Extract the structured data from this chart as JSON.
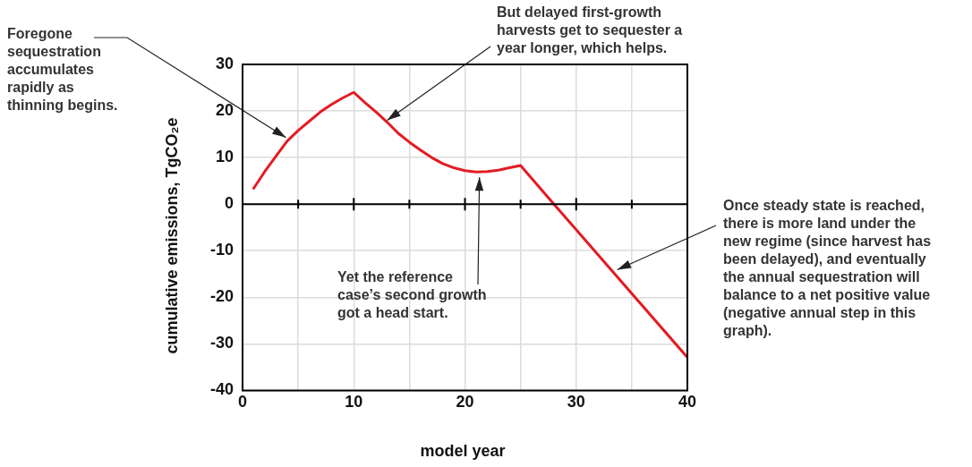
{
  "chart_data": {
    "type": "line",
    "xlabel": "model year",
    "ylabel": "cumulative emissions, TgCO₂e",
    "x": [
      1,
      2,
      3,
      4,
      5,
      6,
      7,
      8,
      9,
      10,
      11,
      12,
      13,
      14,
      15,
      16,
      17,
      18,
      19,
      20,
      21,
      22,
      23,
      24,
      25,
      28,
      40
    ],
    "series": [
      {
        "color": "#e31b23",
        "values": [
          3.4,
          7,
          10.3,
          13.5,
          15.8,
          17.8,
          19.8,
          21.4,
          22.8,
          24,
          21.8,
          19.8,
          17.6,
          15.2,
          13.3,
          11.6,
          10,
          8.7,
          7.8,
          7.2,
          6.9,
          7,
          7.3,
          7.8,
          8.3,
          0,
          -32.9
        ]
      }
    ],
    "xlim": [
      0,
      40
    ],
    "xticks": [
      0,
      {
        "value": 5,
        "label": null
      },
      10,
      {
        "value": 15,
        "label": null
      },
      20,
      {
        "value": 25,
        "label": null
      },
      30,
      {
        "value": 35,
        "label": null
      },
      40
    ],
    "ylim": [
      -40,
      30
    ],
    "yticks": [
      -40,
      -30,
      -20,
      -10,
      0,
      10,
      20,
      30
    ],
    "grid": true,
    "legend": false,
    "marker": "none",
    "line_style": "solid",
    "ref_lines": [
      {
        "axis": "y",
        "value": 0,
        "color": "#000000"
      }
    ],
    "annotations": [
      {
        "text": "Foregone sequestration accumulates rapidly as thinning begins.",
        "x": 3.9,
        "y": 14.3
      },
      {
        "text": "But delayed first-growth harvests get to sequester a year longer, which helps.",
        "x": 13,
        "y": 18
      },
      {
        "text": "Yet the reference case’s second growth got a head start.",
        "x": 21.3,
        "y": 5.8
      },
      {
        "text": "Once steady state is reached, there is more land under the new regime (since harvest has been delayed), and eventually the annual sequestration will balance to a net positive value (negative annual step in this graph).",
        "x": 33.7,
        "y": -14.1
      }
    ]
  }
}
